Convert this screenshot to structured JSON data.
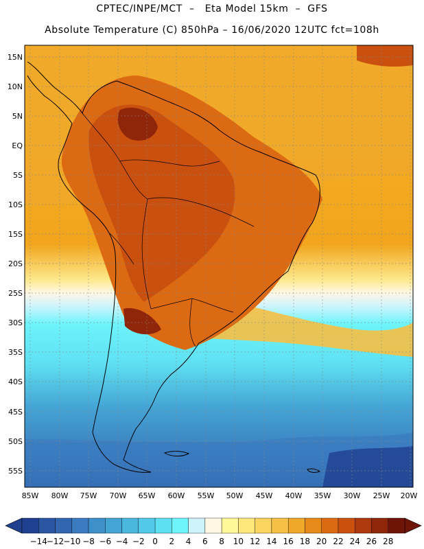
{
  "header": {
    "line1": "CPTEC/INPE/MCT  –   Eta Model 15km  –  GFS",
    "line2": "Absolute Temperature (C) 850hPa – 16/06/2020 12UTC fct=108h"
  },
  "map": {
    "lat_labels": [
      "15N",
      "10N",
      "5N",
      "EQ",
      "5S",
      "10S",
      "15S",
      "20S",
      "25S",
      "30S",
      "35S",
      "40S",
      "45S",
      "50S",
      "55S"
    ],
    "lon_labels": [
      "85W",
      "80W",
      "75W",
      "70W",
      "65W",
      "60W",
      "55W",
      "50W",
      "45W",
      "40W",
      "35W",
      "30W",
      "25W",
      "20W"
    ]
  },
  "colorbar": {
    "labels": [
      "-14",
      "-12",
      "-10",
      "-8",
      "-6",
      "-4",
      "-2",
      "0",
      "2",
      "4",
      "6",
      "8",
      "10",
      "12",
      "14",
      "16",
      "18",
      "20",
      "22",
      "24",
      "26",
      "28"
    ],
    "colors": [
      "#1f3f8f",
      "#2a55a0",
      "#3366b0",
      "#3a7bbf",
      "#3f8fca",
      "#44a4d4",
      "#4ab7df",
      "#52c9e8",
      "#5ee0f2",
      "#6ef4fb",
      "#cdf4fb",
      "#fff7e4",
      "#fff79a",
      "#fde67a",
      "#fbd460",
      "#f6bf45",
      "#f0a82a",
      "#e88a1a",
      "#dc6a12",
      "#c9500e",
      "#ad3a0c",
      "#8f2509",
      "#6e1508"
    ]
  }
}
